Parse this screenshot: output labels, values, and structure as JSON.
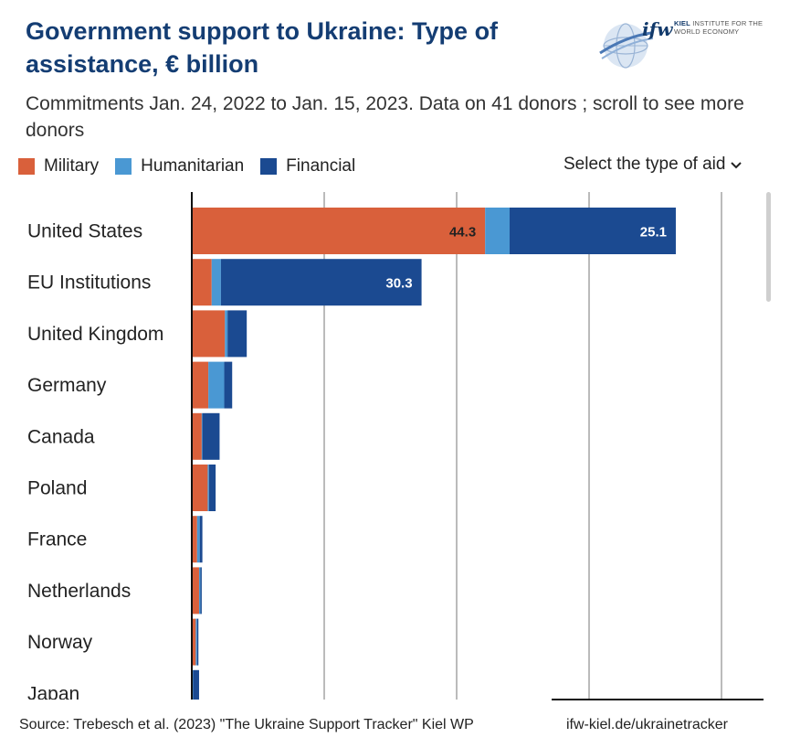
{
  "header": {
    "title": "Government support to Ukraine: Type of assistance, € billion",
    "subtitle": "Commitments Jan. 24, 2022 to Jan. 15, 2023. Data on 41 donors ; scroll to see more donors",
    "logo_text": "ifw",
    "logo_org_line1": "KIEL",
    "logo_org_line2": "INSTITUTE FOR THE WORLD ECONOMY"
  },
  "legend": {
    "items": [
      {
        "label": "Military",
        "color": "#d9603b"
      },
      {
        "label": "Humanitarian",
        "color": "#4a98d3"
      },
      {
        "label": "Financial",
        "color": "#1b4a91"
      }
    ]
  },
  "controls": {
    "dropdown_label": "Select the type of aid"
  },
  "chart_data": {
    "type": "bar",
    "orientation": "horizontal",
    "stacked": true,
    "title": "Government support to Ukraine: Type of assistance, € billion",
    "categories": [
      "United States",
      "EU Institutions",
      "United Kingdom",
      "Germany",
      "Canada",
      "Poland",
      "France",
      "Netherlands",
      "Norway",
      "Japan"
    ],
    "series": [
      {
        "name": "Military",
        "color": "#d9603b",
        "values": [
          44.3,
          3.0,
          5.0,
          2.5,
          1.5,
          2.4,
          0.8,
          1.1,
          0.6,
          0.0
        ]
      },
      {
        "name": "Humanitarian",
        "color": "#4a98d3",
        "values": [
          3.7,
          1.4,
          0.4,
          2.4,
          0.1,
          0.2,
          0.4,
          0.2,
          0.2,
          0.2
        ]
      },
      {
        "name": "Financial",
        "color": "#1b4a91",
        "values": [
          25.1,
          30.3,
          2.9,
          1.2,
          2.6,
          1.0,
          0.4,
          0.2,
          0.2,
          0.9
        ]
      }
    ],
    "data_labels": [
      {
        "category": "United States",
        "series": "Military",
        "text": "44.3"
      },
      {
        "category": "United States",
        "series": "Financial",
        "text": "25.1"
      },
      {
        "category": "EU Institutions",
        "series": "Financial",
        "text": "30.3"
      }
    ],
    "xlim": [
      0,
      85
    ],
    "gridlines": [
      20,
      40,
      60,
      80
    ],
    "grid": true
  },
  "footer": {
    "source": "Source: Trebesch et al. (2023) \"The Ukraine Support Tracker\" Kiel WP",
    "link": "ifw-kiel.de/ukrainetracker"
  }
}
